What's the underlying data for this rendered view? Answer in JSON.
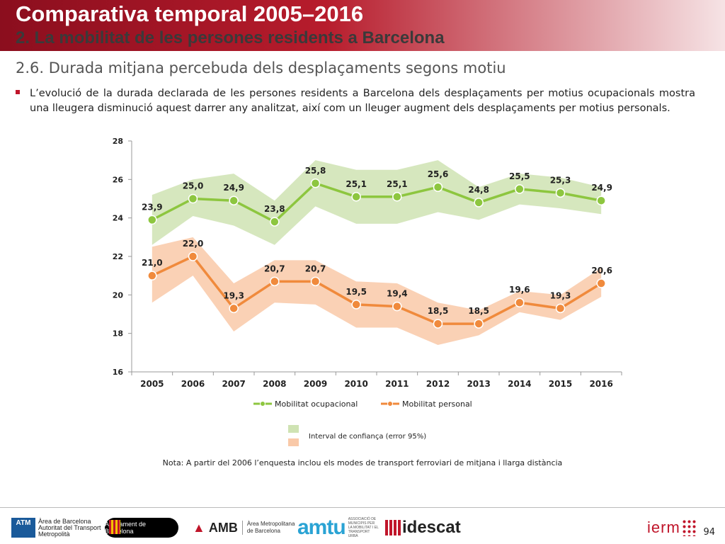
{
  "header": {
    "title": "Comparativa temporal 2005–2016",
    "subtitle": "2. La mobilitat de les persones residents a Barcelona"
  },
  "section": {
    "title": "2.6. Durada mitjana percebuda dels desplaçaments segons motiu"
  },
  "bullet": {
    "text": "L’evolució de la durada declarada de les persones residents a Barcelona dels desplaçaments per motius ocupacionals mostra una lleugera disminució aquest darrer any analitzat, així com un lleuger augment dels desplaçaments per motius personals."
  },
  "chart_data": {
    "type": "line",
    "categories": [
      "2005",
      "2006",
      "2007",
      "2008",
      "2009",
      "2010",
      "2011",
      "2012",
      "2013",
      "2014",
      "2015",
      "2016"
    ],
    "ylim": [
      16,
      28
    ],
    "yticks": [
      "16",
      "18",
      "20",
      "22",
      "24",
      "26",
      "28"
    ],
    "grid": false,
    "series": [
      {
        "name": "Mobilitat ocupacional",
        "color": "#8dc63f",
        "band_color": "#cfe3b3",
        "values": [
          23.9,
          25.0,
          24.9,
          23.8,
          25.8,
          25.1,
          25.1,
          25.6,
          24.8,
          25.5,
          25.3,
          24.9
        ],
        "labels": [
          "23,9",
          "25,0",
          "24,9",
          "23,8",
          "25,8",
          "25,1",
          "25,1",
          "25,6",
          "24,8",
          "25,5",
          "25,3",
          "24,9"
        ],
        "upper": [
          25.2,
          26.0,
          26.3,
          24.9,
          27.0,
          26.5,
          26.5,
          27.0,
          25.6,
          26.3,
          26.1,
          25.6
        ],
        "lower": [
          22.6,
          24.1,
          23.6,
          22.6,
          24.6,
          23.7,
          23.7,
          24.3,
          23.9,
          24.7,
          24.5,
          24.2
        ]
      },
      {
        "name": "Mobilitat personal",
        "color": "#f08a3c",
        "band_color": "#f9c9a8",
        "values": [
          21.0,
          22.0,
          19.3,
          20.7,
          20.7,
          19.5,
          19.4,
          18.5,
          18.5,
          19.6,
          19.3,
          20.6
        ],
        "labels": [
          "21,0",
          "22,0",
          "19,3",
          "20,7",
          "20,7",
          "19,5",
          "19,4",
          "18,5",
          "18,5",
          "19,6",
          "19,3",
          "20,6"
        ],
        "upper": [
          22.5,
          23.0,
          20.6,
          21.8,
          21.8,
          20.7,
          20.6,
          19.6,
          19.2,
          20.2,
          20.0,
          21.4
        ],
        "lower": [
          19.6,
          21.0,
          18.1,
          19.6,
          19.5,
          18.3,
          18.3,
          17.4,
          17.9,
          19.1,
          18.7,
          19.9
        ]
      }
    ],
    "legend": {
      "placement": "bottom",
      "band_label": "Interval de confiança (error 95%)"
    }
  },
  "note": "Nota: A partir del 2006 l’enquesta inclou els modes de transport ferroviari de mitjana i llarga distància",
  "footer": {
    "logos": {
      "atm_box": "ATM",
      "atm_line1": "Àrea de Barcelona",
      "atm_line2": "Autoritat del Transport",
      "atm_line3": "Metropolità",
      "ajb": "Ajuntament de Barcelona",
      "amb_mark": "AMB",
      "amb_line1": "Àrea Metropolitana",
      "amb_line2": "de Barcelona",
      "amtu": "amtu",
      "amtu_small": "ASSOCIACIÓ DE MUNICIPIS PER LA MOBILITAT I EL TRANSPORT URBÀ",
      "idescat": "idescat",
      "iermb": "ierm"
    },
    "page_number": "94"
  }
}
